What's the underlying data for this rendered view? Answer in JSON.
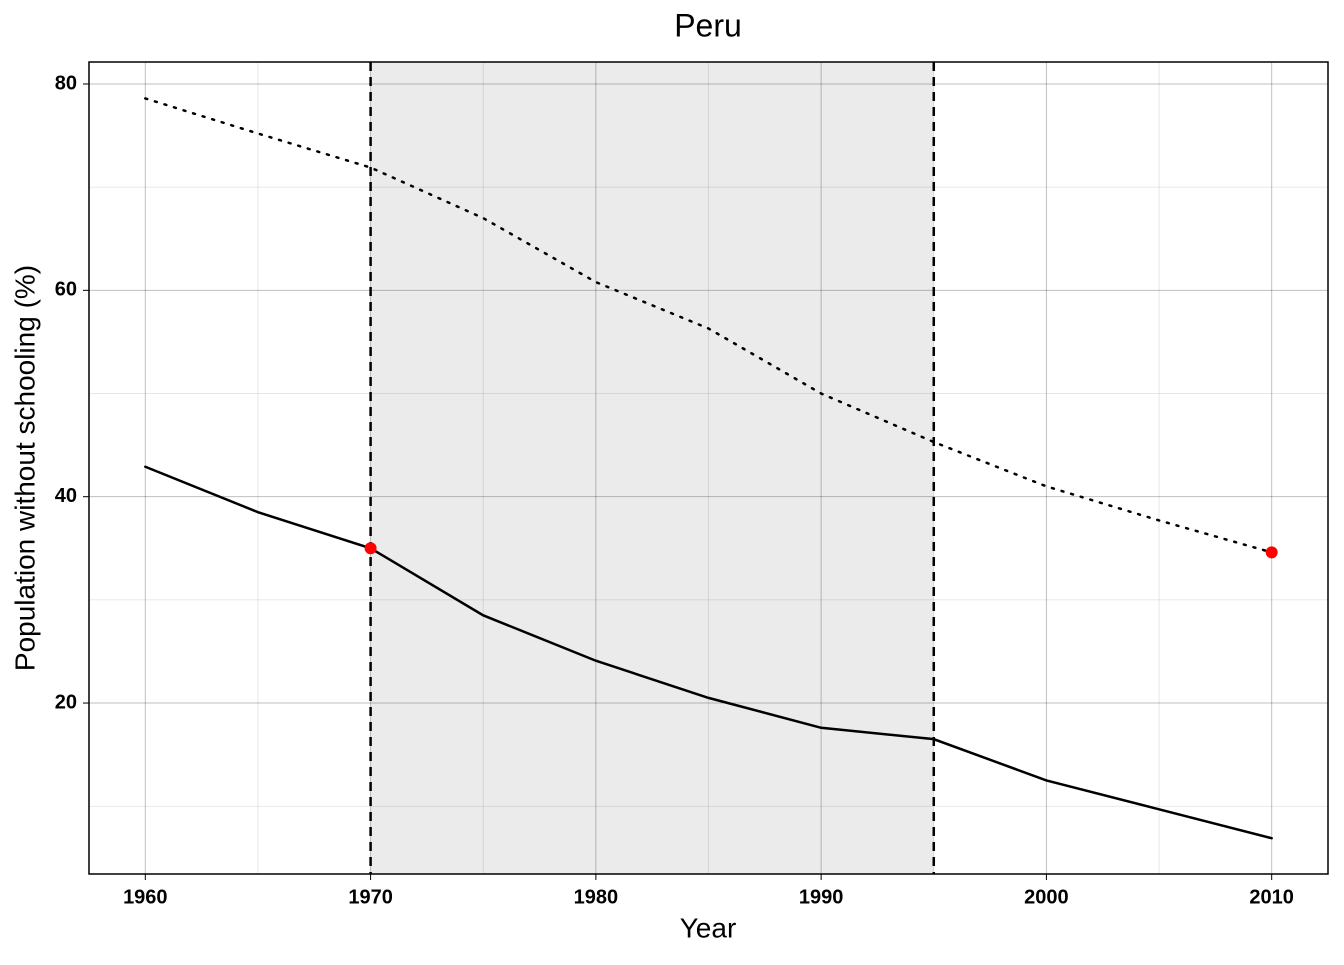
{
  "chart_data": {
    "type": "line",
    "title": "Peru",
    "xlabel": "Year",
    "ylabel": "Population without schooling (%)",
    "x": [
      1960,
      1965,
      1970,
      1975,
      1980,
      1985,
      1990,
      1995,
      2000,
      2005,
      2010
    ],
    "series": [
      {
        "color": "#000000",
        "linestyle": "solid",
        "values": [
          42.9,
          38.5,
          35.0,
          28.5,
          24.1,
          20.5,
          17.6,
          16.5,
          12.5,
          9.7,
          6.9
        ]
      },
      {
        "color": "#000000",
        "linestyle": "dotted",
        "values": [
          78.6,
          75.2,
          71.9,
          67.0,
          60.8,
          56.3,
          50.0,
          45.3,
          41.0,
          37.7,
          34.6
        ]
      }
    ],
    "points": {
      "color": "#ff0000",
      "x": [
        1970,
        2010
      ],
      "values": [
        35.0,
        34.6
      ]
    },
    "shaded_span": {
      "from": 1970,
      "to": 1995,
      "color": "#ebebeb"
    },
    "vlines": [
      1970,
      1995
    ],
    "xlim": [
      1957.5,
      2012.5
    ],
    "ylim": [
      3.43,
      82.13
    ],
    "xticks": [
      1960,
      1970,
      1980,
      1990,
      2000,
      2010
    ],
    "yticks": [
      20,
      40,
      60,
      80
    ],
    "minor_xticks": [
      1965,
      1975,
      1985,
      1995,
      2005
    ],
    "minor_yticks": [
      10,
      30,
      50,
      70
    ],
    "grid": true
  }
}
